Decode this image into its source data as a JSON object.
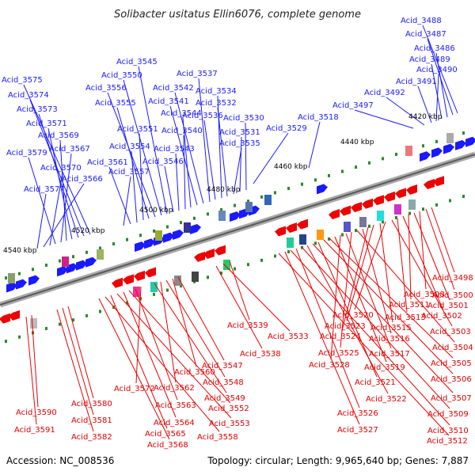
{
  "title": "Solibacter usitatus Ellin6076, complete genome",
  "footer": {
    "accession": "Accession: NC_008536",
    "summary": "Topology: circular; Length: 9,965,640 bp; Genes: 7,887"
  },
  "colors": {
    "forward": "#1a1aff",
    "reverse": "#ee0000",
    "backbone": "#8a8a8a",
    "tick": "#2a8a2a"
  },
  "kbp_markers": [
    "4420 kbp",
    "4440 kbp",
    "4460 kbp",
    "4480 kbp",
    "4500 kbp",
    "4520 kbp",
    "4540 kbp"
  ],
  "blue_labels": [
    "Acid_3488",
    "Acid_3487",
    "Acid_3486",
    "Acid_3489",
    "Acid_3490",
    "Acid_3491",
    "Acid_3492",
    "Acid_3497",
    "Acid_3518",
    "Acid_3529",
    "Acid_3530",
    "Acid_3531",
    "Acid_3535",
    "Acid_3532",
    "Acid_3534",
    "Acid_3536",
    "Acid_3537",
    "Acid_3542",
    "Acid_3541",
    "Acid_3544",
    "Acid_3540",
    "Acid_3543",
    "Acid_3546",
    "Acid_3545",
    "Acid_3550",
    "Acid_3556",
    "Acid_3555",
    "Acid_3551",
    "Acid_3554",
    "Acid_3561",
    "Acid_3557",
    "Acid_3575",
    "Acid_3574",
    "Acid_3573",
    "Acid_3571",
    "Acid_3569",
    "Acid_3567",
    "Acid_3579",
    "Acid_3570",
    "Acid_3566",
    "Acid_3577"
  ],
  "red_labels": [
    "Acid_3498",
    "Acid_3500",
    "Acid_3508",
    "Acid_3501",
    "Acid_3511",
    "Acid_3502",
    "Acid_3513",
    "Acid_3503",
    "Acid_3520",
    "Acid_3515",
    "Acid_3523",
    "Acid_3524",
    "Acid_3516",
    "Acid_3504",
    "Acid_3525",
    "Acid_3517",
    "Acid_3528",
    "Acid_3519",
    "Acid_3505",
    "Acid_3506",
    "Acid_3521",
    "Acid_3507",
    "Acid_3522",
    "Acid_3509",
    "Acid_3526",
    "Acid_3510",
    "Acid_3527",
    "Acid_3512",
    "Acid_3539",
    "Acid_3533",
    "Acid_3538",
    "Acid_3547",
    "Acid_3560",
    "Acid_3548",
    "Acid_3562",
    "Acid_3549",
    "Acid_3572",
    "Acid_3563",
    "Acid_3552",
    "Acid_3564",
    "Acid_3553",
    "Acid_3565",
    "Acid_3558",
    "Acid_3568",
    "Acid_3580",
    "Acid_3581",
    "Acid_3582",
    "Acid_3590",
    "Acid_3591"
  ]
}
